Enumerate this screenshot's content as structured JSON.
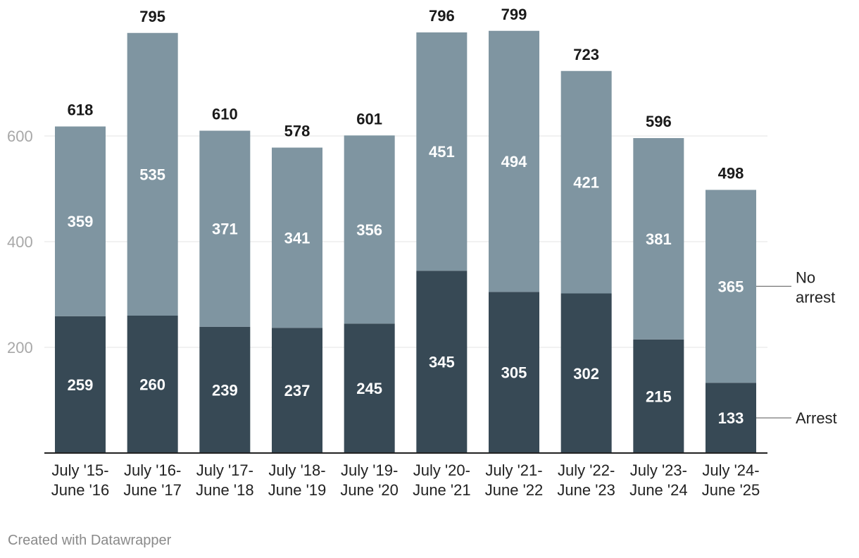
{
  "chart_data": {
    "type": "bar",
    "stacked": true,
    "categories": [
      [
        "July '15-",
        "June '16"
      ],
      [
        "July '16-",
        "June '17"
      ],
      [
        "July '17-",
        "June '18"
      ],
      [
        "July '18-",
        "June '19"
      ],
      [
        "July '19-",
        "June '20"
      ],
      [
        "July '20-",
        "June '21"
      ],
      [
        "July '21-",
        "June '22"
      ],
      [
        "July '22-",
        "June '23"
      ],
      [
        "July '23-",
        "June '24"
      ],
      [
        "July '24-",
        "June '25"
      ]
    ],
    "series": [
      {
        "name": "Arrest",
        "legend_lines": [
          "Arrest"
        ],
        "color": "#374955",
        "values": [
          259,
          260,
          239,
          237,
          245,
          345,
          305,
          302,
          215,
          133
        ]
      },
      {
        "name": "No arrest",
        "legend_lines": [
          "No",
          "arrest"
        ],
        "color": "#7f95a1",
        "values": [
          359,
          535,
          371,
          341,
          356,
          451,
          494,
          421,
          381,
          365
        ]
      }
    ],
    "totals": [
      618,
      795,
      610,
      578,
      601,
      796,
      799,
      723,
      596,
      498
    ],
    "yticks": [
      200,
      400,
      600
    ],
    "ylim": [
      0,
      800
    ],
    "grid": true,
    "legend_placement": "right, inline with last bar"
  },
  "footer": {
    "credit": "Created with Datawrapper"
  },
  "colors": {
    "grid": "#e3e3e3",
    "axis": "#222222"
  }
}
